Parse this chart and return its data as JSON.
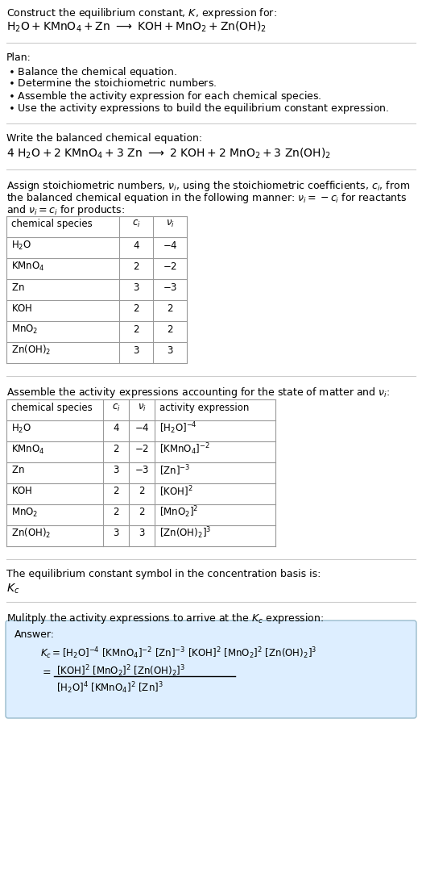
{
  "bg_color": "#ffffff",
  "table_border_color": "#999999",
  "answer_box_color": "#ddeeff",
  "answer_box_border": "#99bbcc",
  "text_color": "#000000",
  "font_size": 9.0,
  "lmargin": 8,
  "rmargin": 516,
  "table1_data": [
    [
      "$\\mathrm{H_2O}$",
      "4",
      "$-4$"
    ],
    [
      "$\\mathrm{KMnO_4}$",
      "2",
      "$-2$"
    ],
    [
      "$\\mathrm{Zn}$",
      "3",
      "$-3$"
    ],
    [
      "$\\mathrm{KOH}$",
      "2",
      "$2$"
    ],
    [
      "$\\mathrm{MnO_2}$",
      "2",
      "$2$"
    ],
    [
      "$\\mathrm{Zn(OH)_2}$",
      "3",
      "$3$"
    ]
  ],
  "table2_data": [
    [
      "$\\mathrm{H_2O}$",
      "4",
      "$-4$",
      "$[\\mathrm{H_2O}]^{-4}$"
    ],
    [
      "$\\mathrm{KMnO_4}$",
      "2",
      "$-2$",
      "$[\\mathrm{KMnO_4}]^{-2}$"
    ],
    [
      "$\\mathrm{Zn}$",
      "3",
      "$-3$",
      "$[\\mathrm{Zn}]^{-3}$"
    ],
    [
      "$\\mathrm{KOH}$",
      "2",
      "$2$",
      "$[\\mathrm{KOH}]^{2}$"
    ],
    [
      "$\\mathrm{MnO_2}$",
      "2",
      "$2$",
      "$[\\mathrm{MnO_2}]^{2}$"
    ],
    [
      "$\\mathrm{Zn(OH)_2}$",
      "3",
      "$3$",
      "$[\\mathrm{Zn(OH)_2}]^{3}$"
    ]
  ]
}
